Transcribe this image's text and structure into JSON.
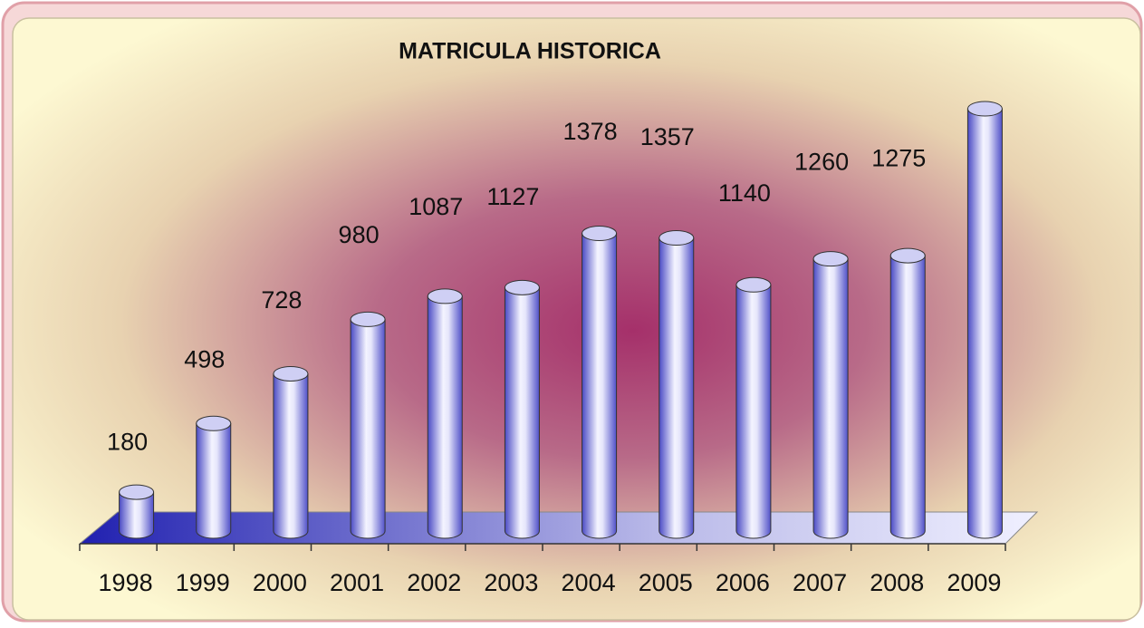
{
  "chart_data": {
    "type": "bar",
    "title": "MATRICULA   HISTORICA",
    "categories": [
      "1998",
      "1999",
      "2000",
      "2001",
      "2002",
      "2003",
      "2004",
      "2005",
      "2006",
      "2007",
      "2008",
      "2009"
    ],
    "values": [
      180,
      498,
      728,
      980,
      1087,
      1127,
      1378,
      1357,
      1140,
      1260,
      1275,
      1955
    ],
    "color": "#6b6bd8"
  }
}
